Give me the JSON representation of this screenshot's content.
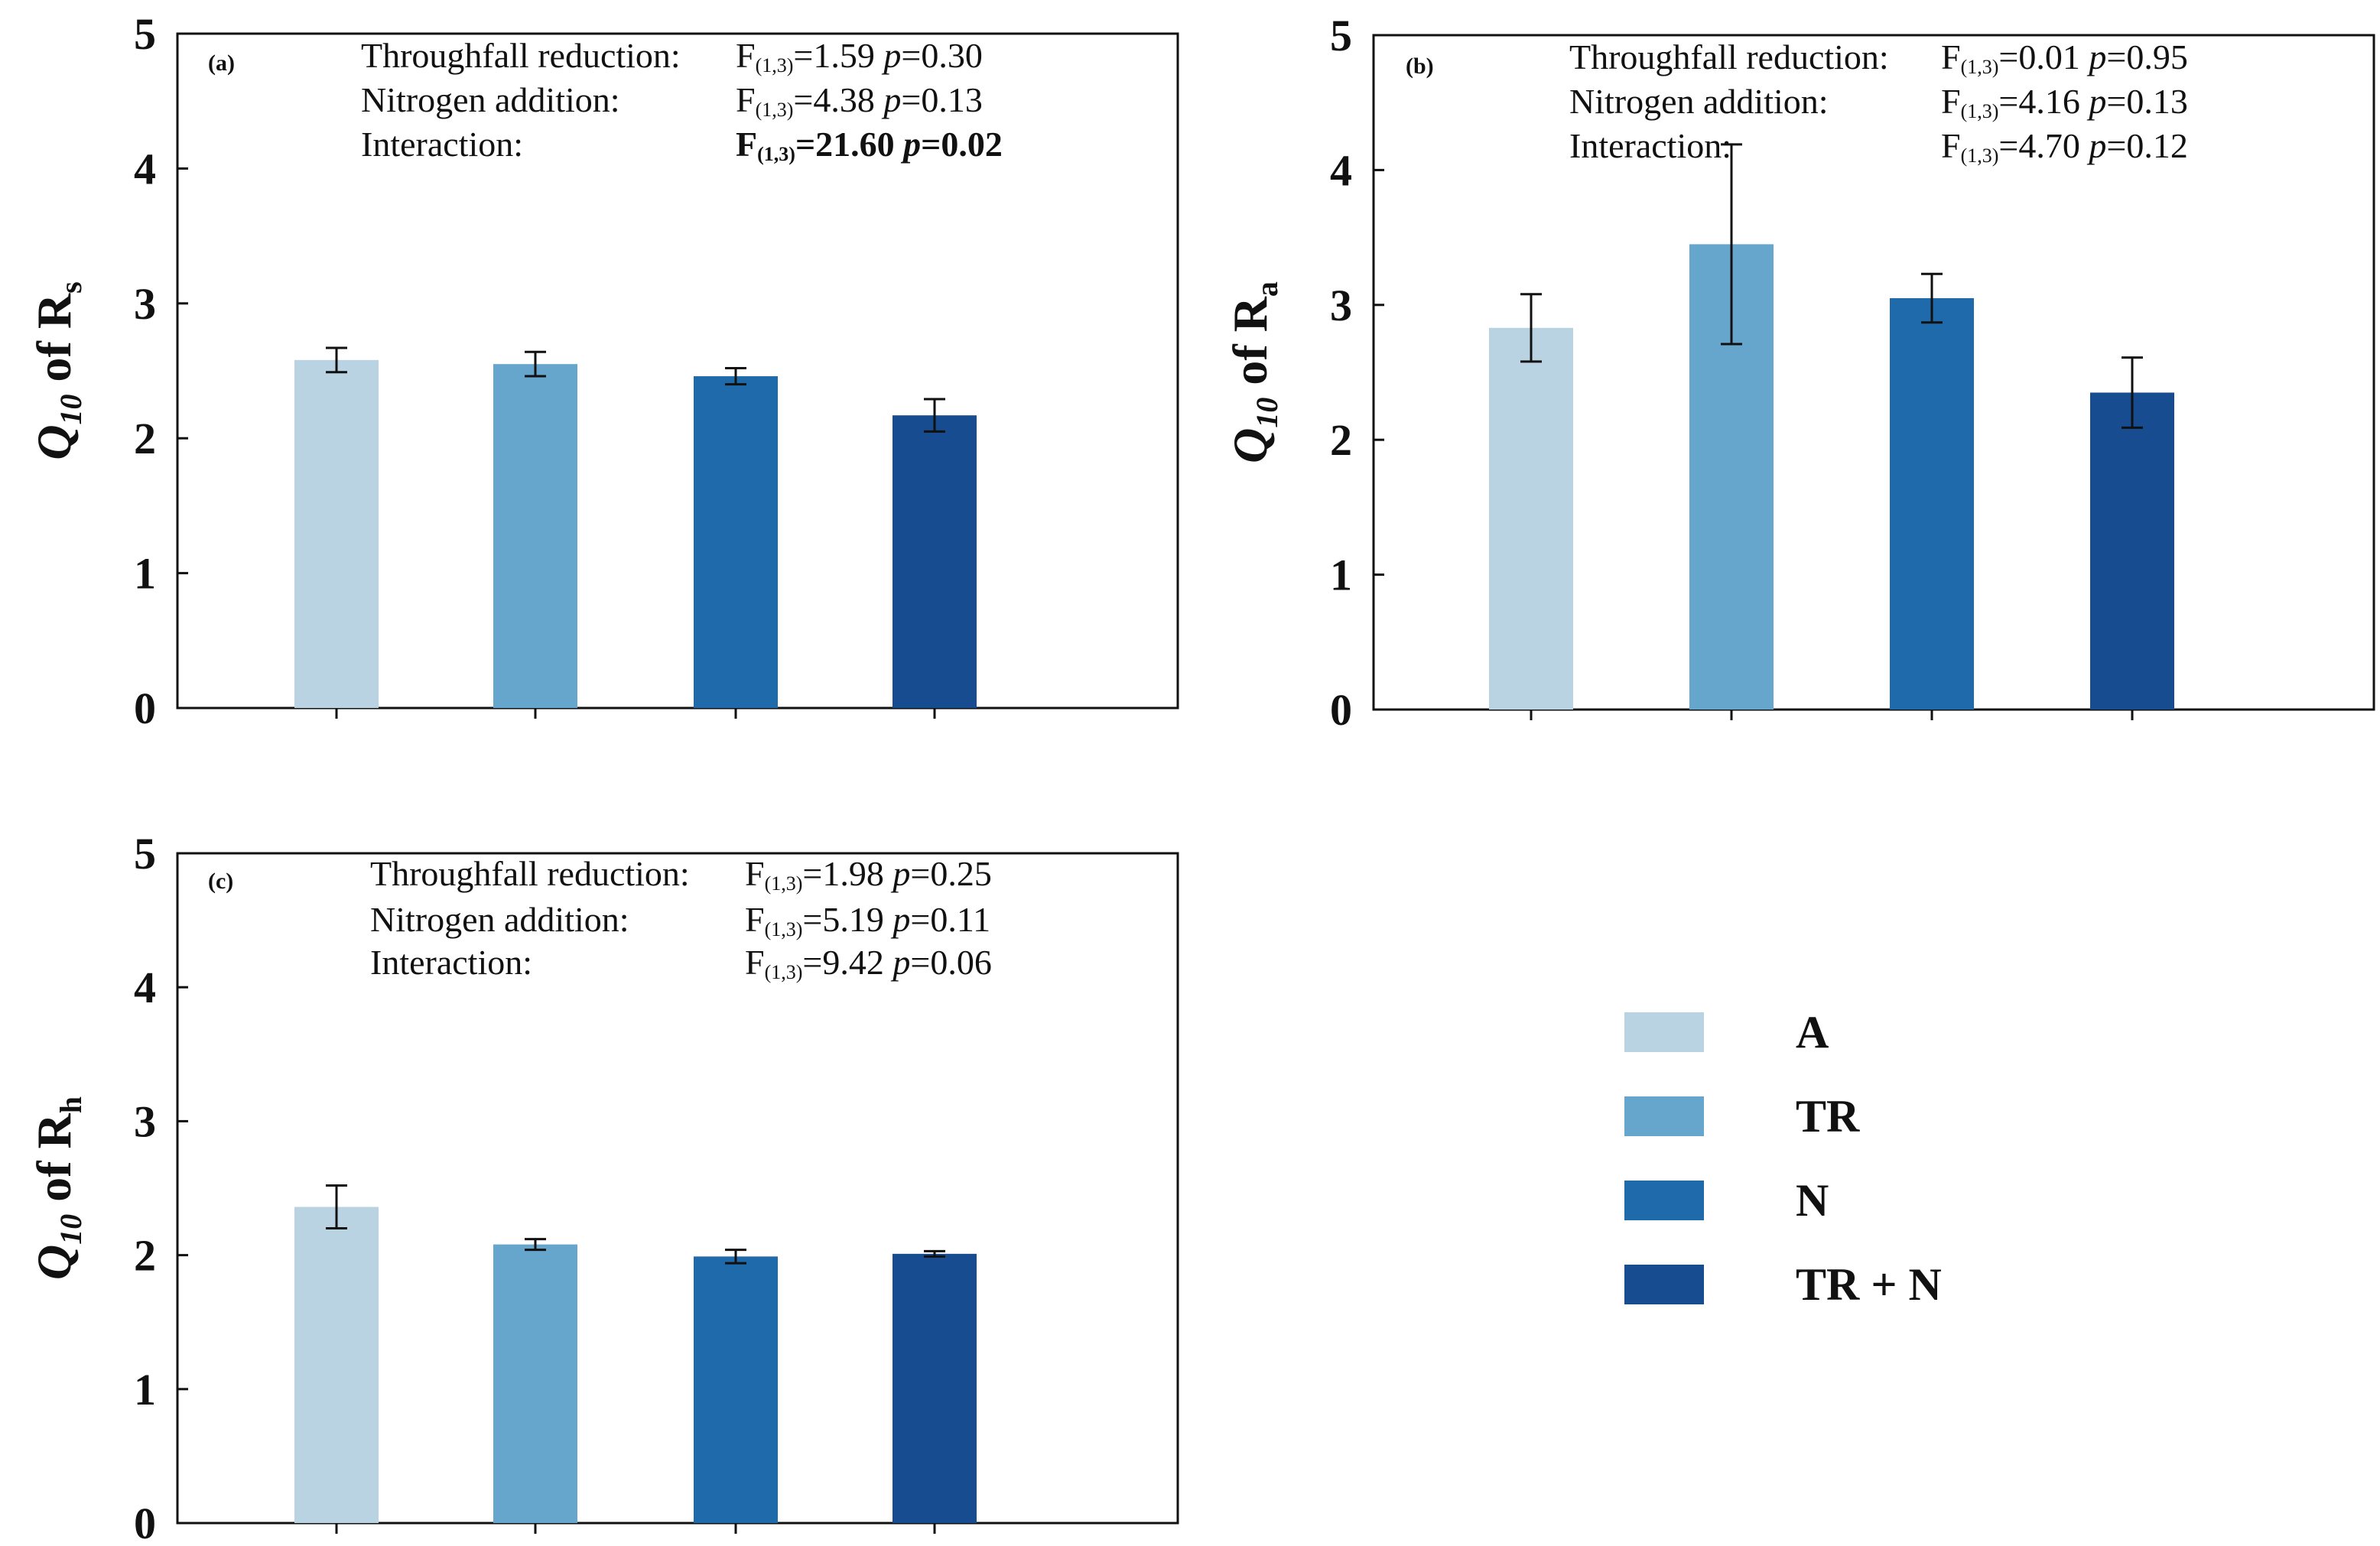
{
  "colors": {
    "A": "#b9d3e3",
    "TR": "#66a5cc",
    "N": "#1f6aaa",
    "TR+N": "#174c90",
    "axis": "#111111"
  },
  "legend": {
    "items": [
      {
        "key": "A",
        "label": "A"
      },
      {
        "key": "TR",
        "label": "TR"
      },
      {
        "key": "N",
        "label": "N"
      },
      {
        "key": "TR+N",
        "label": "TR + N"
      }
    ]
  },
  "chart_data": [
    {
      "type": "bar",
      "panel": "(a)",
      "ylabel": {
        "italic": "Q",
        "italic_sub": "10",
        "middle": " of R",
        "sub": "s"
      },
      "ylim": [
        0,
        5
      ],
      "yticks": [
        "0",
        "1",
        "2",
        "3",
        "4",
        "5"
      ],
      "categories": [
        "A",
        "TR",
        "N",
        "TR+N"
      ],
      "values": [
        2.58,
        2.55,
        2.46,
        2.17
      ],
      "errors": [
        0.09,
        0.09,
        0.06,
        0.12
      ],
      "stats": [
        {
          "label": "Throughfall reduction:",
          "f": "F",
          "sub": "(1,3)",
          "fval": "=1.59",
          "p": "p",
          "pval": "=0.30",
          "bold": false
        },
        {
          "label": "Nitrogen addition:",
          "f": "F",
          "sub": "(1,3)",
          "fval": "=4.38",
          "p": "p",
          "pval": "=0.13",
          "bold": false
        },
        {
          "label": "Interaction:",
          "f": "F",
          "sub": "(1,3)",
          "fval": "=21.60",
          "p": "p",
          "pval": "=0.02",
          "bold": true
        }
      ]
    },
    {
      "type": "bar",
      "panel": "(b)",
      "ylabel": {
        "italic": "Q",
        "italic_sub": "10",
        "middle": " of R",
        "sub": "a"
      },
      "ylim": [
        0,
        5
      ],
      "yticks": [
        "0",
        "1",
        "2",
        "3",
        "4",
        "5"
      ],
      "categories": [
        "A",
        "TR",
        "N",
        "TR+N"
      ],
      "values": [
        2.83,
        3.45,
        3.05,
        2.35
      ],
      "errors": [
        0.25,
        0.74,
        0.18,
        0.26
      ],
      "stats": [
        {
          "label": "Throughfall reduction:",
          "f": "F",
          "sub": "(1,3)",
          "fval": "=0.01",
          "p": "p",
          "pval": "=0.95",
          "bold": false
        },
        {
          "label": "Nitrogen addition:",
          "f": "F",
          "sub": "(1,3)",
          "fval": "=4.16",
          "p": "p",
          "pval": "=0.13",
          "bold": false
        },
        {
          "label": "Interaction:",
          "f": "F",
          "sub": "(1,3)",
          "fval": "=4.70",
          "p": "p",
          "pval": "=0.12",
          "bold": false
        }
      ]
    },
    {
      "type": "bar",
      "panel": "(c)",
      "ylabel": {
        "italic": "Q",
        "italic_sub": "10",
        "middle": " of R",
        "sub": "h"
      },
      "ylim": [
        0,
        5
      ],
      "yticks": [
        "0",
        "1",
        "2",
        "3",
        "4",
        "5"
      ],
      "categories": [
        "A",
        "TR",
        "N",
        "TR+N"
      ],
      "values": [
        2.36,
        2.08,
        1.99,
        2.01
      ],
      "errors": [
        0.16,
        0.04,
        0.05,
        0.02
      ],
      "stats": [
        {
          "label": "Throughfall reduction:",
          "f": "F",
          "sub": "(1,3)",
          "fval": "=1.98",
          "p": "p",
          "pval": "=0.25",
          "bold": false
        },
        {
          "label": "Nitrogen addition:",
          "f": "F",
          "sub": "(1,3)",
          "fval": "=5.19",
          "p": "p",
          "pval": "=0.11",
          "bold": false
        },
        {
          "label": "Interaction:",
          "f": "F",
          "sub": "(1,3)",
          "fval": "=9.42",
          "p": "p",
          "pval": "=0.06",
          "bold": false
        }
      ]
    }
  ]
}
